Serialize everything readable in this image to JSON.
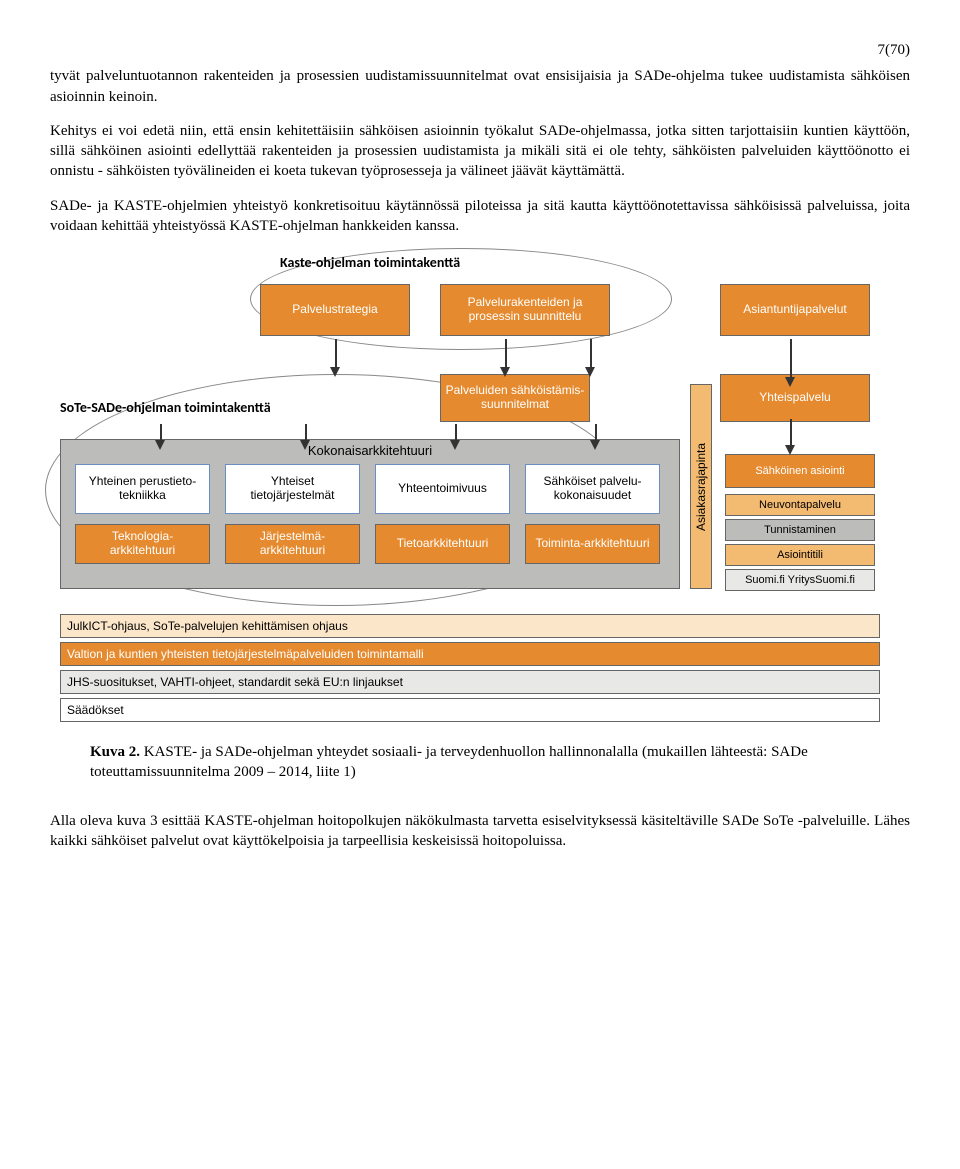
{
  "page_number": "7(70)",
  "para1": "tyvät palveluntuotannon rakenteiden ja prosessien uudistamissuunnitelmat ovat ensisijaisia ja SADe-ohjelma tukee uudistamista sähköisen asioinnin keinoin.",
  "para2": "Kehitys ei voi edetä niin, että ensin kehitettäisiin sähköisen asioinnin työkalut SADe-ohjelmassa, jotka sitten tarjottaisiin kuntien käyttöön, sillä sähköinen asiointi edellyttää rakenteiden ja prosessien uudistamista ja mikäli sitä ei ole tehty, sähköisten palveluiden käyttöönotto ei onnistu - sähköisten työvälineiden ei koeta tukevan työprosesseja ja välineet jäävät käyttämättä.",
  "para3": "SADe- ja KASTE-ohjelmien yhteistyö konkretisoituu käytännössä piloteissa ja sitä kautta käyttöönotettavissa sähköisissä palveluissa, joita voidaan kehittää yhteistyössä KASTE-ohjelman hankkeiden kanssa.",
  "labels": {
    "kaste": "Kaste-ohjelman toimintakenttä",
    "sote": "SoTe-SADe-ohjelman toimintakenttä"
  },
  "colors": {
    "orange_dark": "#e58a2e",
    "orange_light": "#f3ba72",
    "orange_pale": "#fbe6c9",
    "gray_band": "#bcbcbb",
    "gray_light": "#e8e8e6",
    "blue_border": "#6b8dc2",
    "text_white": "#ffffff"
  },
  "top_row": [
    {
      "label": "Palvelustrategia",
      "bg": "orange_dark",
      "fg": "text_white"
    },
    {
      "label": "Palvelurakenteiden ja prosessin suunnittelu",
      "bg": "orange_dark",
      "fg": "text_white"
    },
    {
      "label": "Asiantuntijapalvelut",
      "bg": "orange_dark",
      "fg": "text_white"
    }
  ],
  "mid_row": [
    {
      "label": "Palveluiden sähköistämis-suunnitelmat",
      "bg": "orange_dark",
      "fg": "text_white"
    },
    {
      "label": "Yhteispalvelu",
      "bg": "orange_dark",
      "fg": "text_white"
    }
  ],
  "arch_title": "Kokonaisarkkitehtuuri",
  "arch_top": [
    "Yhteinen perustieto-tekniikka",
    "Yhteiset tietojärjestelmät",
    "Yhteentoimivuus",
    "Sähköiset palvelu-kokonaisuudet"
  ],
  "arch_bottom": [
    "Teknologia-arkkitehtuuri",
    "Järjestelmä-arkkitehtuuri",
    "Tietoarkkitehtuuri",
    "Toiminta-arkkitehtuuri"
  ],
  "asiakasrajapinta": "Asiakasrajapinta",
  "right_col": [
    {
      "label": "Sähköinen asiointi",
      "bg": "orange_dark",
      "fg": "text_white"
    },
    {
      "label": "Neuvontapalvelu",
      "bg": "orange_light",
      "fg": "000"
    },
    {
      "label": "Tunnistaminen",
      "bg": "gray_band",
      "fg": "000"
    },
    {
      "label": "Asiointitili",
      "bg": "orange_light",
      "fg": "000"
    },
    {
      "label": "Suomi.fi YritysSuomi.fi",
      "bg": "gray_light",
      "fg": "000"
    }
  ],
  "bottom_bars": [
    {
      "label": "JulkICT-ohjaus, SoTe-palvelujen kehittämisen ohjaus",
      "bg": "orange_pale"
    },
    {
      "label": "Valtion ja kuntien yhteisten tietojärjestelmäpalveluiden toimintamalli",
      "bg": "orange_dark",
      "fg": "text_white"
    },
    {
      "label": "JHS-suositukset, VAHTI-ohjeet, standardit sekä EU:n linjaukset",
      "bg": "gray_light"
    },
    {
      "label": "Säädökset",
      "bg": "white"
    }
  ],
  "caption_bold": "Kuva 2.",
  "caption_rest": "  KASTE- ja SADe-ohjelman yhteydet sosiaali- ja terveydenhuollon hallinnonalalla (mukaillen lähteestä: SADe toteuttamissuunnitelma 2009 – 2014, liite 1)",
  "para4": "Alla oleva kuva 3 esittää KASTE-ohjelman hoitopolkujen näkökulmasta tarvetta esiselvityksessä käsiteltäville SADe SoTe -palveluille. Lähes kaikki sähköiset palvelut ovat käyttökelpoisia ja tarpeellisia keskeisissä hoitopoluissa."
}
